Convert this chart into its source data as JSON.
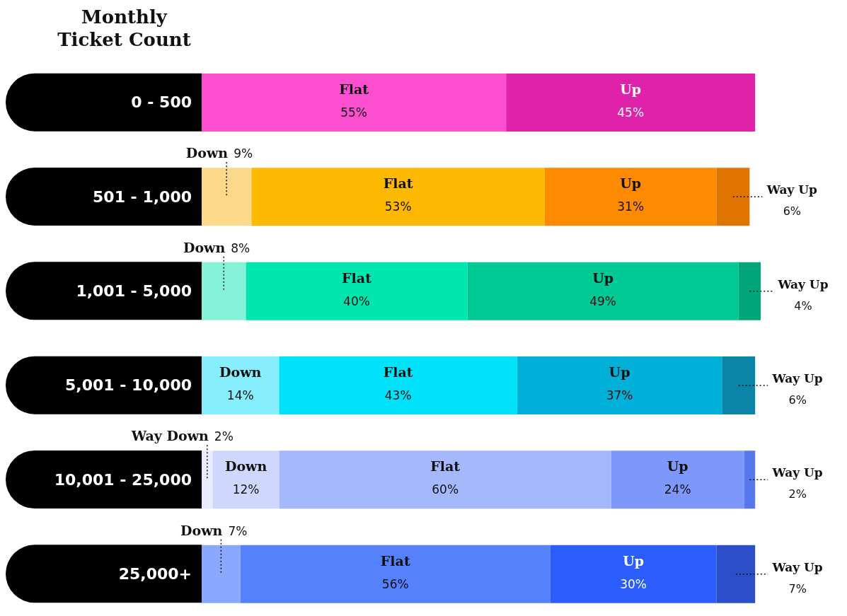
{
  "chart_data": {
    "type": "bar",
    "orientation": "horizontal",
    "stacked": true,
    "ylabel": "Monthly Ticket Count",
    "categories": [
      "0 - 500",
      "501 - 1,000",
      "1,001 - 5,000",
      "5,001 - 10,000",
      "10,001 - 25,000",
      "25,000+"
    ],
    "series": [
      {
        "name": "Way Down",
        "values": [
          null,
          null,
          null,
          null,
          2,
          null
        ],
        "value_labels": [
          null,
          null,
          null,
          null,
          "2%",
          null
        ],
        "colors": [
          "#e8ecfd",
          "#e8ecfd",
          "#e8ecfd",
          "#e8ecfd",
          "#e8ecfd",
          "#e8ecfd"
        ]
      },
      {
        "name": "Down",
        "values": [
          null,
          9,
          8,
          14,
          12,
          7
        ],
        "value_labels": [
          null,
          "9%",
          "8%",
          "14%",
          "12%",
          "7%"
        ],
        "colors": [
          "#fcd98a",
          "#fcd98a",
          "#84f2d6",
          "#86eefc",
          "#cfd8fc",
          "#8aa8fd"
        ]
      },
      {
        "name": "Flat",
        "values": [
          55,
          53,
          40,
          43,
          60,
          56
        ],
        "value_labels": [
          "55%",
          "53%",
          "40%",
          "43%",
          "60%",
          "56%"
        ],
        "colors": [
          "#fb4fcf",
          "#fdb902",
          "#00e6b0",
          "#00e1fa",
          "#a6b8fc",
          "#5581fb"
        ]
      },
      {
        "name": "Up",
        "values": [
          45,
          31,
          49,
          37,
          24,
          30
        ],
        "value_labels": [
          "45%",
          "31%",
          "49%",
          "37%",
          "24%",
          "30%"
        ],
        "colors": [
          "#e022ab",
          "#fd8a00",
          "#00c994",
          "#00b0d8",
          "#7d97fa",
          "#2a5dfb"
        ]
      },
      {
        "name": "Way Up",
        "values": [
          null,
          6,
          4,
          6,
          2,
          7
        ],
        "value_labels": [
          null,
          "6%",
          "4%",
          "6%",
          "2%",
          "7%"
        ],
        "colors": [
          "#e07400",
          "#e07400",
          "#00a57a",
          "#0a85a8",
          "#5777ee",
          "#2a4fc8"
        ]
      }
    ],
    "xlim": [
      0,
      101
    ],
    "tick_labels": "y",
    "legend": false,
    "grid": false
  }
}
